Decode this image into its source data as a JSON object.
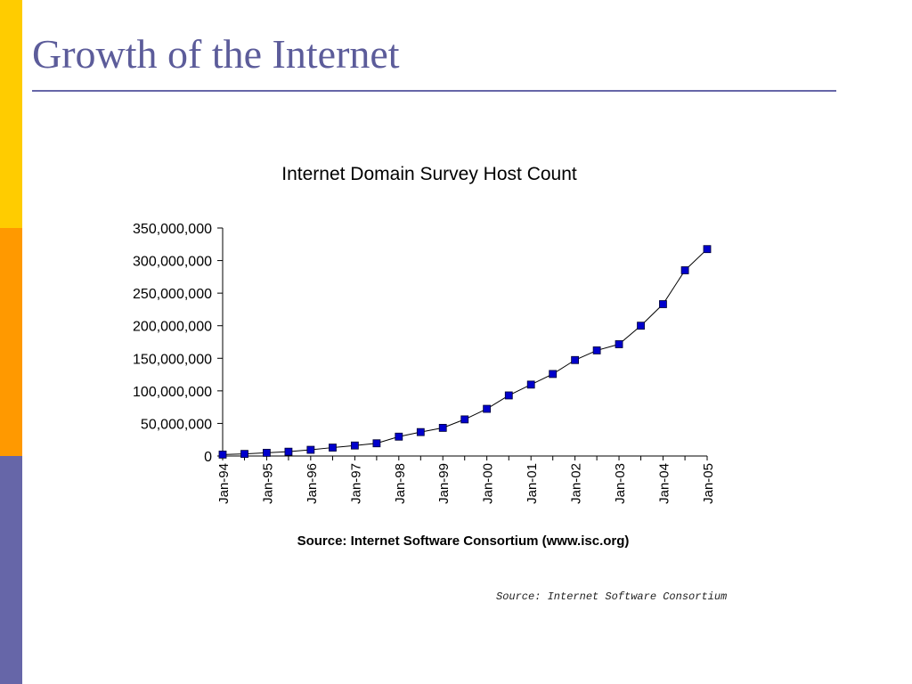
{
  "slide": {
    "title": "Growth of the Internet",
    "source_note": "Source: Internet Software Consortium",
    "colors": {
      "bar_yellow": "#FFCC00",
      "bar_orange": "#FF9900",
      "bar_blue": "#6666A8",
      "title": "#5C5C9A",
      "rule": "#6666A8"
    }
  },
  "chart_data": {
    "type": "line",
    "title": "Internet Domain Survey Host Count",
    "xlabel": "",
    "ylabel": "",
    "source": "Source: Internet Software Consortium (www.isc.org)",
    "ylim": [
      0,
      350000000
    ],
    "yticks": [
      0,
      50000000,
      100000000,
      150000000,
      200000000,
      250000000,
      300000000,
      350000000
    ],
    "ytick_labels": [
      "0",
      "50,000,000",
      "100,000,000",
      "150,000,000",
      "200,000,000",
      "250,000,000",
      "300,000,000",
      "350,000,000"
    ],
    "xtick_labels": [
      "Jan-94",
      "Jan-95",
      "Jan-96",
      "Jan-97",
      "Jan-98",
      "Jan-99",
      "Jan-00",
      "Jan-01",
      "Jan-02",
      "Jan-03",
      "Jan-04",
      "Jan-05"
    ],
    "marker": "square",
    "marker_color": "#0000CC",
    "line_color": "#000000",
    "series": [
      {
        "x": [
          "1994-01",
          "1994-07",
          "1995-01",
          "1995-07",
          "1996-01",
          "1996-07",
          "1997-01",
          "1997-07",
          "1998-01",
          "1998-07",
          "1999-01",
          "1999-07",
          "2000-01",
          "2000-07",
          "2001-01",
          "2001-07",
          "2002-01",
          "2002-07",
          "2003-01",
          "2003-07",
          "2004-01",
          "2004-07",
          "2005-01"
        ],
        "values": [
          2200000,
          3200000,
          4900000,
          6600000,
          9500000,
          12900000,
          16100000,
          19500000,
          29700000,
          36700000,
          43200000,
          56200000,
          72400000,
          93000000,
          109600000,
          125900000,
          147300000,
          162100000,
          171600000,
          200000000,
          233100000,
          285100000,
          317600000
        ]
      }
    ]
  }
}
